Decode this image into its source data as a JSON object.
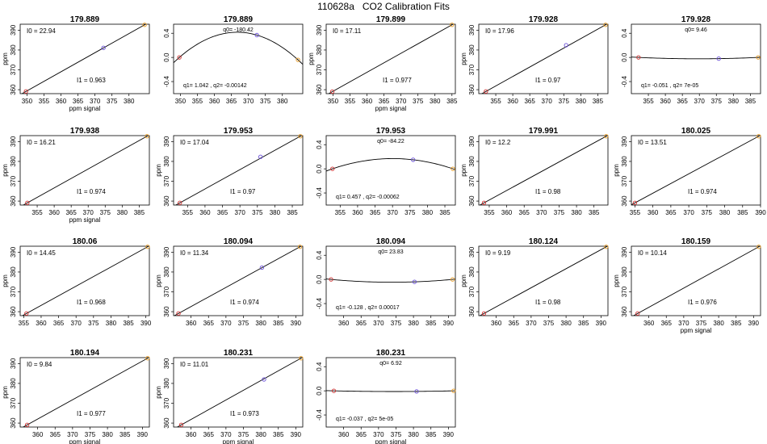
{
  "figure": {
    "title": "110628a   CO2 Calibration Fits"
  },
  "colors": {
    "point1": "#d03030",
    "point2": "#6a4fd8",
    "point3": "#e89a20",
    "line": "#000000"
  },
  "chart_data": [
    {
      "type": "line",
      "kind": "linear",
      "title": "179.889",
      "xlabel": "ppm signal",
      "ylabel": "ppm",
      "xlim": [
        348,
        386
      ],
      "ylim": [
        358,
        393
      ],
      "xticks": [
        350,
        355,
        360,
        365,
        370,
        375,
        380
      ],
      "yticks": [
        360,
        370,
        380,
        390
      ],
      "points": [
        [
          349.7,
          359.1
        ],
        [
          372.5,
          381.1
        ],
        [
          384.6,
          392.7
        ]
      ],
      "annotations": {
        "i0": "I0 = 22.94",
        "i1": "I1 = 0.963"
      }
    },
    {
      "type": "line",
      "kind": "quadratic",
      "title": "179.889",
      "xlabel": "",
      "ylabel": "",
      "xlim": [
        348,
        386
      ],
      "ylim": [
        -0.6,
        0.55
      ],
      "xticks": [
        350,
        355,
        360,
        365,
        370,
        375,
        380
      ],
      "yticks": [
        -0.4,
        0.0,
        0.4
      ],
      "ytick_labels": [
        "-0.4",
        "0.0",
        "0.4"
      ],
      "points": [
        [
          349.7,
          0.0
        ],
        [
          372.5,
          0.37
        ],
        [
          384.6,
          -0.04
        ]
      ],
      "curve": {
        "q0": -180.42,
        "q1": 1.042,
        "q2": -0.00142
      },
      "annotations": {
        "q0": "q0= -180.42",
        "q12": "q1= 1.042 , q2= -0.00142"
      }
    },
    {
      "type": "line",
      "kind": "linear",
      "title": "179.899",
      "xlabel": "ppm signal",
      "ylabel": "ppm",
      "xlim": [
        348,
        386
      ],
      "ylim": [
        358,
        393
      ],
      "xticks": [
        350,
        355,
        360,
        365,
        370,
        375,
        380,
        385
      ],
      "yticks": [
        360,
        370,
        380,
        390
      ],
      "points": [
        [
          349.8,
          359.0
        ],
        [
          385.0,
          392.7
        ]
      ],
      "annotations": {
        "i0": "I0 = 17.11",
        "i1": "I1 = 0.977"
      }
    },
    {
      "type": "line",
      "kind": "linear",
      "title": "179.928",
      "xlabel": "",
      "ylabel": "ppm",
      "xlim": [
        350,
        388
      ],
      "ylim": [
        358,
        393
      ],
      "xticks": [
        355,
        360,
        365,
        370,
        375,
        380,
        385
      ],
      "yticks": [
        360,
        370,
        380,
        390
      ],
      "points": [
        [
          352.1,
          359.1
        ],
        [
          375.7,
          382.4
        ],
        [
          387.3,
          392.7
        ]
      ],
      "annotations": {
        "i0": "I0 = 17.96",
        "i1": "I1 = 0.97"
      }
    },
    {
      "type": "line",
      "kind": "quadratic",
      "title": "179.928",
      "xlabel": "",
      "ylabel": "",
      "xlim": [
        350,
        388
      ],
      "ylim": [
        -0.6,
        0.55
      ],
      "xticks": [
        355,
        360,
        365,
        370,
        375,
        380,
        385
      ],
      "yticks": [
        -0.4,
        0.0,
        0.4
      ],
      "ytick_labels": [
        "-0.4",
        "0.0",
        "0.4"
      ],
      "points": [
        [
          352.1,
          0.0
        ],
        [
          375.7,
          -0.02
        ],
        [
          387.3,
          0.0
        ]
      ],
      "curve": {
        "q0": 9.46,
        "q1": -0.051,
        "q2": 7e-05
      },
      "annotations": {
        "q0": "q0= 9.46",
        "q12": "q1= -0.051 , q2= 7e-05"
      }
    },
    {
      "type": "line",
      "kind": "linear",
      "title": "179.938",
      "xlabel": "ppm signal",
      "ylabel": "ppm",
      "xlim": [
        350,
        388
      ],
      "ylim": [
        358,
        393
      ],
      "xticks": [
        355,
        360,
        365,
        370,
        375,
        380,
        385
      ],
      "yticks": [
        360,
        370,
        380,
        390
      ],
      "points": [
        [
          352.1,
          359.1
        ],
        [
          387.3,
          392.7
        ]
      ],
      "annotations": {
        "i0": "I0 = 16.21",
        "i1": "I1 = 0.974"
      }
    },
    {
      "type": "line",
      "kind": "linear",
      "title": "179.953",
      "xlabel": "",
      "ylabel": "ppm",
      "xlim": [
        351,
        388
      ],
      "ylim": [
        358,
        393
      ],
      "xticks": [
        355,
        360,
        365,
        370,
        375,
        380,
        385
      ],
      "yticks": [
        360,
        370,
        380,
        390
      ],
      "points": [
        [
          352.8,
          359.1
        ],
        [
          375.9,
          382.3
        ],
        [
          387.3,
          392.7
        ]
      ],
      "annotations": {
        "i0": "I0 = 17.04",
        "i1": "I1 = 0.97"
      }
    },
    {
      "type": "line",
      "kind": "quadratic",
      "title": "179.953",
      "xlabel": "",
      "ylabel": "",
      "xlim": [
        351,
        388
      ],
      "ylim": [
        -0.6,
        0.55
      ],
      "xticks": [
        355,
        360,
        365,
        370,
        375,
        380,
        385
      ],
      "yticks": [
        -0.4,
        0.0,
        0.4
      ],
      "ytick_labels": [
        "-0.4",
        "0.0",
        "0.4"
      ],
      "points": [
        [
          352.8,
          0.0
        ],
        [
          375.9,
          0.15
        ],
        [
          387.3,
          0.0
        ]
      ],
      "curve": {
        "q0": -84.22,
        "q1": 0.457,
        "q2": -0.00062
      },
      "annotations": {
        "q0": "q0= -84.22",
        "q12": "q1= 0.457 , q2= -0.00062"
      }
    },
    {
      "type": "line",
      "kind": "linear",
      "title": "179.991",
      "xlabel": "",
      "ylabel": "ppm",
      "xlim": [
        352,
        389
      ],
      "ylim": [
        358,
        393
      ],
      "xticks": [
        355,
        360,
        365,
        370,
        375,
        380,
        385
      ],
      "yticks": [
        360,
        370,
        380,
        390
      ],
      "points": [
        [
          353.5,
          359.1
        ],
        [
          388.5,
          392.7
        ]
      ],
      "annotations": {
        "i0": "I0 = 12.2",
        "i1": "I1 = 0.98"
      }
    },
    {
      "type": "line",
      "kind": "linear",
      "title": "180.025",
      "xlabel": "",
      "ylabel": "ppm",
      "xlim": [
        354,
        390
      ],
      "ylim": [
        358,
        393
      ],
      "xticks": [
        355,
        360,
        365,
        370,
        375,
        380,
        385,
        390
      ],
      "yticks": [
        360,
        370,
        380,
        390
      ],
      "points": [
        [
          355.0,
          359.1
        ],
        [
          389.5,
          392.7
        ]
      ],
      "annotations": {
        "i0": "I0 = 13.51",
        "i1": "I1 = 0.974"
      }
    },
    {
      "type": "line",
      "kind": "linear",
      "title": "180.06",
      "xlabel": "",
      "ylabel": "ppm",
      "xlim": [
        354,
        391
      ],
      "ylim": [
        358,
        393
      ],
      "xticks": [
        355,
        360,
        365,
        370,
        375,
        380,
        385,
        390
      ],
      "yticks": [
        360,
        370,
        380,
        390
      ],
      "points": [
        [
          355.8,
          359.1
        ],
        [
          390.5,
          392.7
        ]
      ],
      "annotations": {
        "i0": "I0 = 14.45",
        "i1": "I1 = 0.968"
      }
    },
    {
      "type": "line",
      "kind": "linear",
      "title": "180.094",
      "xlabel": "",
      "ylabel": "ppm",
      "xlim": [
        355,
        392
      ],
      "ylim": [
        358,
        393
      ],
      "xticks": [
        360,
        365,
        370,
        375,
        380,
        385,
        390
      ],
      "yticks": [
        360,
        370,
        380,
        390
      ],
      "points": [
        [
          356.4,
          359.1
        ],
        [
          380.3,
          382.2
        ],
        [
          391.2,
          392.7
        ]
      ],
      "annotations": {
        "i0": "I0 = 11.34",
        "i1": "I1 = 0.974"
      }
    },
    {
      "type": "line",
      "kind": "quadratic",
      "title": "180.094",
      "xlabel": "",
      "ylabel": "",
      "xlim": [
        355,
        392
      ],
      "ylim": [
        -0.6,
        0.55
      ],
      "xticks": [
        360,
        365,
        370,
        375,
        380,
        385,
        390
      ],
      "yticks": [
        -0.4,
        0.0,
        0.4
      ],
      "ytick_labels": [
        "-0.4",
        "0.0",
        "0.4"
      ],
      "points": [
        [
          356.4,
          0.0
        ],
        [
          380.3,
          -0.04
        ],
        [
          391.2,
          0.0
        ]
      ],
      "curve": {
        "q0": 23.83,
        "q1": -0.128,
        "q2": 0.00017
      },
      "annotations": {
        "q0": "q0= 23.83",
        "q12": "q1= -0.128 , q2= 0.00017"
      }
    },
    {
      "type": "line",
      "kind": "linear",
      "title": "180.124",
      "xlabel": "",
      "ylabel": "ppm",
      "xlim": [
        355,
        392
      ],
      "ylim": [
        358,
        393
      ],
      "xticks": [
        360,
        365,
        370,
        375,
        380,
        385,
        390
      ],
      "yticks": [
        360,
        370,
        380,
        390
      ],
      "points": [
        [
          356.5,
          359.1
        ],
        [
          391.5,
          392.7
        ]
      ],
      "annotations": {
        "i0": "I0 = 9.19",
        "i1": "I1 = 0.98"
      }
    },
    {
      "type": "line",
      "kind": "linear",
      "title": "180.159",
      "xlabel": "ppm signal",
      "ylabel": "ppm",
      "xlim": [
        355,
        392
      ],
      "ylim": [
        358,
        393
      ],
      "xticks": [
        360,
        365,
        370,
        375,
        380,
        385,
        390
      ],
      "yticks": [
        360,
        370,
        380,
        390
      ],
      "points": [
        [
          356.8,
          359.1
        ],
        [
          391.5,
          392.7
        ]
      ],
      "annotations": {
        "i0": "I0 = 10.14",
        "i1": "I1 = 0.976"
      }
    },
    {
      "type": "line",
      "kind": "linear",
      "title": "180.194",
      "xlabel": "ppm signal",
      "ylabel": "ppm",
      "xlim": [
        355,
        392
      ],
      "ylim": [
        358,
        393
      ],
      "xticks": [
        360,
        365,
        370,
        375,
        380,
        385,
        390
      ],
      "yticks": [
        360,
        370,
        380,
        390
      ],
      "points": [
        [
          357.0,
          359.1
        ],
        [
          391.5,
          392.7
        ]
      ],
      "annotations": {
        "i0": "I0 = 9.84",
        "i1": "I1 = 0.977"
      }
    },
    {
      "type": "line",
      "kind": "linear",
      "title": "180.231",
      "xlabel": "ppm signal",
      "ylabel": "ppm",
      "xlim": [
        355,
        392
      ],
      "ylim": [
        358,
        393
      ],
      "xticks": [
        360,
        365,
        370,
        375,
        380,
        385,
        390
      ],
      "yticks": [
        360,
        370,
        380,
        390
      ],
      "points": [
        [
          357.2,
          359.1
        ],
        [
          380.9,
          382.0
        ],
        [
          391.5,
          392.7
        ]
      ],
      "annotations": {
        "i0": "I0 = 11.01",
        "i1": "I1 = 0.973"
      }
    },
    {
      "type": "line",
      "kind": "quadratic",
      "title": "180.231",
      "xlabel": "ppm signal",
      "ylabel": "",
      "xlim": [
        355,
        392
      ],
      "ylim": [
        -0.6,
        0.55
      ],
      "xticks": [
        360,
        365,
        370,
        375,
        380,
        385,
        390
      ],
      "yticks": [
        -0.4,
        0.0,
        0.4
      ],
      "ytick_labels": [
        "-0.4",
        "0.0",
        "0.4"
      ],
      "points": [
        [
          357.2,
          0.0
        ],
        [
          380.9,
          -0.01
        ],
        [
          391.5,
          0.0
        ]
      ],
      "curve": {
        "q0": 6.92,
        "q1": -0.037,
        "q2": 5e-05
      },
      "annotations": {
        "q0": "q0= 6.92",
        "q12": "q1= -0.037 , q2= 5e-05"
      }
    }
  ]
}
